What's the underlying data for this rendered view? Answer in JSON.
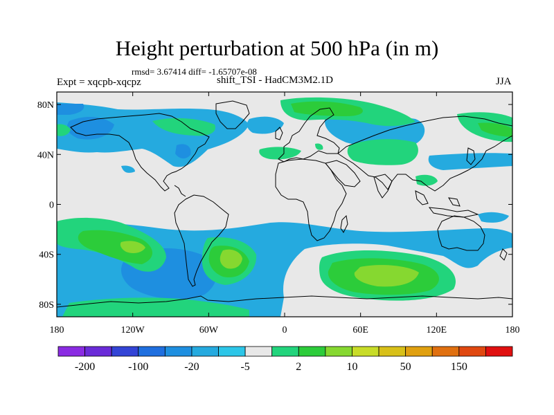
{
  "title": "Height perturbation at 500 hPa (in m)",
  "stats_line": "rmsd= 3.67414 diff= -1.65707e-08",
  "experiment_label": "Expt = xqcpb-xqcpz",
  "run_label": "shift_TSI - HadCM3M2.1D",
  "season_label": "JJA",
  "map": {
    "projection": "cylindrical-equidistant",
    "lon_range": [
      -180,
      180
    ],
    "lat_range": [
      -90,
      90
    ],
    "lat_tick_labels": [
      "80N",
      "40N",
      "0",
      "40S",
      "80S"
    ],
    "lat_tick_values": [
      80,
      40,
      0,
      -40,
      -80
    ],
    "lon_tick_labels": [
      "180",
      "120W",
      "60W",
      "0",
      "60E",
      "120E",
      "180"
    ],
    "lon_tick_values": [
      -180,
      -120,
      -60,
      0,
      60,
      120,
      180
    ],
    "background_color": "#e8e8e8",
    "coastline_color": "#000000"
  },
  "colorbar": {
    "colors": [
      "#8a2be2",
      "#6a2bd8",
      "#3344d6",
      "#1f6fdf",
      "#1e8fe0",
      "#25aadf",
      "#2cc6e8",
      "#e8e8e8",
      "#22d47c",
      "#2ccc3a",
      "#86d830",
      "#c8dc28",
      "#d8c018",
      "#e0a010",
      "#e07010",
      "#e04810",
      "#e01010"
    ],
    "labels": [
      "-200",
      "-100",
      "-20",
      "-5",
      "2",
      "10",
      "50",
      "150"
    ]
  },
  "anomaly_regions": [
    {
      "name": "south-pacific-low",
      "lon": -82,
      "lat": -57,
      "level": -20
    },
    {
      "name": "south-atlantic-high",
      "lon": -32,
      "lat": -45,
      "level": 10
    },
    {
      "name": "south-indian-high",
      "lon": 63,
      "lat": -58,
      "level": 10
    },
    {
      "name": "south-pacific-high",
      "lon": -135,
      "lat": -34,
      "level": 10
    },
    {
      "name": "arctic-russia-high",
      "lon": 30,
      "lat": 76,
      "level": 10
    },
    {
      "name": "north-america-low",
      "lon": -110,
      "lat": 66,
      "level": -5
    },
    {
      "name": "central-asia-high",
      "lon": 70,
      "lat": 42,
      "level": 2
    },
    {
      "name": "kamchatka-high",
      "lon": 165,
      "lat": 58,
      "level": 10
    }
  ]
}
